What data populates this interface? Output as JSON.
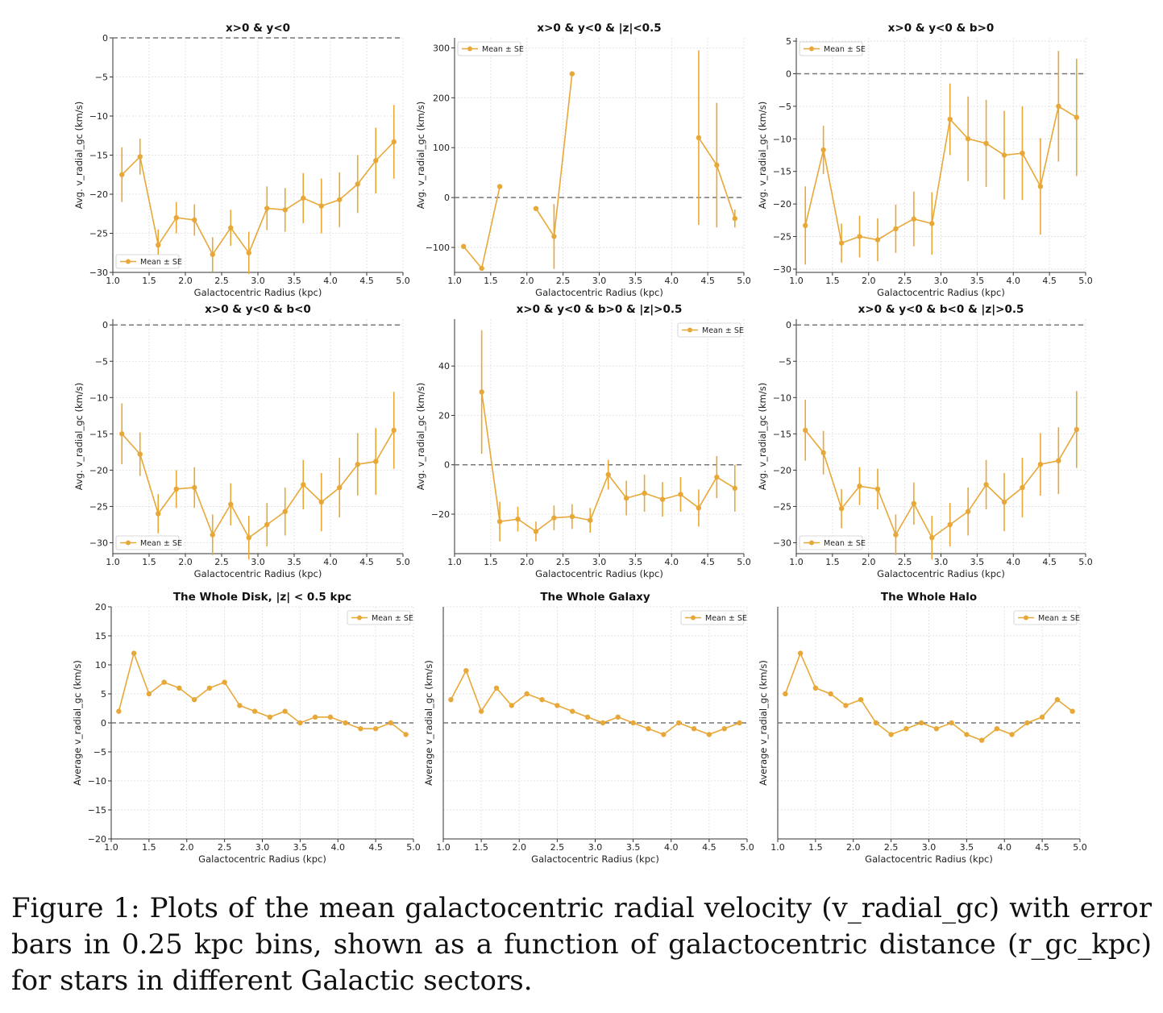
{
  "caption": "Figure 1: Plots of the mean galactocentric radial velocity (v_radial_gc) with error bars in 0.25 kpc bins, shown as a function of galactocentric distance (r_gc_kpc) for stars in different Galactic sectors.",
  "colors": {
    "series": "#e8a838",
    "zero_line": "#777777",
    "grid": "#dddddd",
    "axis": "#333333"
  },
  "chart_data": [
    {
      "type": "line",
      "title": "x>0 & y<0",
      "xlabel": "Galactocentric Radius (kpc)",
      "ylabel": "Avg. v_radial_gc (km/s)",
      "xlim": [
        1.0,
        5.0
      ],
      "ylim": [
        -30,
        0
      ],
      "xticks": [
        "1.0",
        "1.5",
        "2.0",
        "2.5",
        "3.0",
        "3.5",
        "4.0",
        "4.5",
        "5.0"
      ],
      "yticks": [
        0,
        -5,
        -10,
        -15,
        -20,
        -25,
        -30
      ],
      "grid": true,
      "legend": "bottom-left",
      "reference_line": 0,
      "series": [
        {
          "name": "Mean ± SE",
          "errorbars": true,
          "x": [
            1.125,
            1.375,
            1.625,
            1.875,
            2.125,
            2.375,
            2.625,
            2.875,
            3.125,
            3.375,
            3.625,
            3.875,
            4.125,
            4.375,
            4.625,
            4.875
          ],
          "y": [
            -17.5,
            -15.2,
            -26.5,
            -23.0,
            -23.3,
            -27.7,
            -24.3,
            -27.5,
            -21.8,
            -22.0,
            -20.5,
            -21.5,
            -20.7,
            -18.7,
            -15.7,
            -13.3
          ],
          "err": [
            3.5,
            2.3,
            2.0,
            2.0,
            2.0,
            2.2,
            2.3,
            2.7,
            2.8,
            2.8,
            3.2,
            3.5,
            3.5,
            3.7,
            4.2,
            4.7
          ]
        }
      ]
    },
    {
      "type": "line",
      "title": "x>0 & y<0 & |z|<0.5",
      "xlabel": "Galactocentric Radius (kpc)",
      "ylabel": "Avg. v_radial_gc (km/s)",
      "xlim": [
        1.0,
        5.0
      ],
      "ylim": [
        -150,
        320
      ],
      "xticks": [
        "1.0",
        "1.5",
        "2.0",
        "2.5",
        "3.0",
        "3.5",
        "4.0",
        "4.5",
        "5.0"
      ],
      "yticks": [
        300,
        200,
        100,
        0,
        -100
      ],
      "grid": true,
      "legend": "top-left",
      "reference_line": 0,
      "series": [
        {
          "name": "Mean ± SE",
          "errorbars": true,
          "x": [
            1.125,
            1.375,
            1.625,
            null,
            2.125,
            2.375,
            2.625,
            null,
            4.375,
            4.625,
            4.875
          ],
          "y": [
            -98,
            -142,
            22,
            null,
            -22,
            -78,
            248,
            null,
            120,
            65,
            -42
          ],
          "err": [
            0,
            0,
            0,
            null,
            0,
            65,
            0,
            null,
            175,
            125,
            18
          ]
        }
      ]
    },
    {
      "type": "line",
      "title": "x>0 & y<0 & b>0",
      "xlabel": "Galactocentric Radius (kpc)",
      "ylabel": "Avg. v_radial_gc (km/s)",
      "xlim": [
        1.0,
        5.0
      ],
      "ylim": [
        -30.5,
        5.5
      ],
      "xticks": [
        "1.0",
        "1.5",
        "2.0",
        "2.5",
        "3.0",
        "3.5",
        "4.0",
        "4.5",
        "5.0"
      ],
      "yticks": [
        5,
        0,
        -5,
        -10,
        -15,
        -20,
        -25,
        -30
      ],
      "grid": true,
      "legend": "top-left",
      "reference_line": 0,
      "series": [
        {
          "name": "Mean ± SE",
          "errorbars": true,
          "x": [
            1.125,
            1.375,
            1.625,
            1.875,
            2.125,
            2.375,
            2.625,
            2.875,
            3.125,
            3.375,
            3.625,
            3.875,
            4.125,
            4.375,
            4.625,
            4.875
          ],
          "y": [
            -23.3,
            -11.7,
            -26.0,
            -25.0,
            -25.5,
            -23.8,
            -22.3,
            -23.0,
            -7.0,
            -10.0,
            -10.7,
            -12.5,
            -12.2,
            -17.3,
            -5.0,
            -6.7
          ],
          "err": [
            6.0,
            3.7,
            3.0,
            3.2,
            3.3,
            3.7,
            4.2,
            4.8,
            5.5,
            6.5,
            6.7,
            6.8,
            7.2,
            7.4,
            8.5,
            9.0
          ]
        }
      ]
    },
    {
      "type": "line",
      "title": "x>0 & y<0 & b<0",
      "xlabel": "Galactocentric Radius (kpc)",
      "ylabel": "Avg. v_radial_gc (km/s)",
      "xlim": [
        1.0,
        5.0
      ],
      "ylim": [
        -31.5,
        0.8
      ],
      "xticks": [
        "1.0",
        "1.5",
        "2.0",
        "2.5",
        "3.0",
        "3.5",
        "4.0",
        "4.5",
        "5.0"
      ],
      "yticks": [
        0,
        -5,
        -10,
        -15,
        -20,
        -25,
        -30
      ],
      "grid": true,
      "legend": "bottom-left",
      "reference_line": 0,
      "series": [
        {
          "name": "Mean ± SE",
          "errorbars": true,
          "x": [
            1.125,
            1.375,
            1.625,
            1.875,
            2.125,
            2.375,
            2.625,
            2.875,
            3.125,
            3.375,
            3.625,
            3.875,
            4.125,
            4.375,
            4.625,
            4.875
          ],
          "y": [
            -15.0,
            -17.8,
            -26.0,
            -22.6,
            -22.4,
            -28.9,
            -24.7,
            -29.3,
            -27.5,
            -25.7,
            -22.0,
            -24.4,
            -22.4,
            -19.2,
            -18.8,
            -14.5
          ],
          "err": [
            4.2,
            3.0,
            2.7,
            2.6,
            2.8,
            2.8,
            2.9,
            3.0,
            3.0,
            3.3,
            3.4,
            4.0,
            4.1,
            4.3,
            4.6,
            5.3
          ]
        }
      ]
    },
    {
      "type": "line",
      "title": "x>0 & y<0 & b>0 & |z|>0.5",
      "xlabel": "Galactocentric Radius (kpc)",
      "ylabel": "Avg. v_radial_gc (km/s)",
      "xlim": [
        1.0,
        5.0
      ],
      "ylim": [
        -36,
        59
      ],
      "xticks": [
        "1.0",
        "1.5",
        "2.0",
        "2.5",
        "3.0",
        "3.5",
        "4.0",
        "4.5",
        "5.0"
      ],
      "yticks": [
        40,
        20,
        0,
        -20
      ],
      "grid": true,
      "legend": "top-right",
      "reference_line": 0,
      "series": [
        {
          "name": "Mean ± SE",
          "errorbars": true,
          "x": [
            1.375,
            1.625,
            1.875,
            2.125,
            2.375,
            2.625,
            2.875,
            3.125,
            3.375,
            3.625,
            3.875,
            4.125,
            4.375,
            4.625,
            4.875
          ],
          "y": [
            29.5,
            -23.0,
            -22.0,
            -27.0,
            -21.5,
            -21.0,
            -22.5,
            -4.0,
            -13.5,
            -11.5,
            -14.0,
            -12.0,
            -17.5,
            -5.0,
            -9.5
          ],
          "err": [
            25.0,
            8.0,
            5.0,
            4.0,
            5.0,
            5.0,
            5.0,
            6.0,
            7.0,
            7.5,
            7.0,
            7.0,
            7.5,
            8.5,
            9.5
          ]
        }
      ]
    },
    {
      "type": "line",
      "title": "x>0 & y<0 & b<0 & |z|>0.5",
      "xlabel": "Galactocentric Radius (kpc)",
      "ylabel": "Avg. v_radial_gc (km/s)",
      "xlim": [
        1.0,
        5.0
      ],
      "ylim": [
        -31.5,
        0.8
      ],
      "xticks": [
        "1.0",
        "1.5",
        "2.0",
        "2.5",
        "3.0",
        "3.5",
        "4.0",
        "4.5",
        "5.0"
      ],
      "yticks": [
        0,
        -5,
        -10,
        -15,
        -20,
        -25,
        -30
      ],
      "grid": true,
      "legend": "bottom-left",
      "reference_line": 0,
      "series": [
        {
          "name": "Mean ± SE",
          "errorbars": true,
          "x": [
            1.125,
            1.375,
            1.625,
            1.875,
            2.125,
            2.375,
            2.625,
            2.875,
            3.125,
            3.375,
            3.625,
            3.875,
            4.125,
            4.375,
            4.625,
            4.875
          ],
          "y": [
            -14.5,
            -17.6,
            -25.3,
            -22.2,
            -22.6,
            -28.9,
            -24.6,
            -29.3,
            -27.5,
            -25.7,
            -22.0,
            -24.4,
            -22.4,
            -19.2,
            -18.7,
            -14.4
          ],
          "err": [
            4.2,
            3.0,
            2.7,
            2.6,
            2.8,
            2.8,
            2.9,
            3.0,
            3.0,
            3.3,
            3.4,
            4.0,
            4.1,
            4.3,
            4.6,
            5.3
          ]
        }
      ]
    },
    {
      "type": "line",
      "title": "The Whole Disk, |z| < 0.5 kpc",
      "xlabel": "Galactocentric Radius (kpc)",
      "ylabel": "Average v_radial_gc (km/s)",
      "xlim": [
        1.0,
        5.0
      ],
      "ylim": [
        -20,
        20
      ],
      "xticks": [
        "1.0",
        "1.5",
        "2.0",
        "2.5",
        "3.0",
        "3.5",
        "4.0",
        "4.5",
        "5.0"
      ],
      "yticks": [
        20,
        15,
        10,
        5,
        0,
        -5,
        -10,
        -15,
        -20
      ],
      "grid": true,
      "legend": "top-right",
      "reference_line": 0,
      "series": [
        {
          "name": "Mean ± SE",
          "errorbars": false,
          "x": [
            1.1,
            1.3,
            1.5,
            1.7,
            1.9,
            2.1,
            2.3,
            2.5,
            2.7,
            2.9,
            3.1,
            3.3,
            3.5,
            3.7,
            3.9,
            4.1,
            4.3,
            4.5,
            4.7,
            4.9
          ],
          "y": [
            2,
            12,
            5,
            7,
            6,
            4,
            6,
            7,
            3,
            2,
            1,
            2,
            0,
            1,
            1,
            0,
            -1,
            -1,
            0,
            -2
          ]
        }
      ]
    },
    {
      "type": "line",
      "title": "The Whole Galaxy",
      "xlabel": "Galactocentric Radius (kpc)",
      "ylabel": "Average v_radial_gc (km/s)",
      "xlim": [
        1.0,
        5.0
      ],
      "ylim": [
        -20,
        20
      ],
      "xticks": [
        "1.0",
        "1.5",
        "2.0",
        "2.5",
        "3.0",
        "3.5",
        "4.0",
        "4.5",
        "5.0"
      ],
      "yticks": [],
      "grid": true,
      "legend": "top-right",
      "reference_line": 0,
      "series": [
        {
          "name": "Mean ± SE",
          "errorbars": false,
          "x": [
            1.1,
            1.3,
            1.5,
            1.7,
            1.9,
            2.1,
            2.3,
            2.5,
            2.7,
            2.9,
            3.1,
            3.3,
            3.5,
            3.7,
            3.9,
            4.1,
            4.3,
            4.5,
            4.7,
            4.9
          ],
          "y": [
            4,
            9,
            2,
            6,
            3,
            5,
            4,
            3,
            2,
            1,
            0,
            1,
            0,
            -1,
            -2,
            0,
            -1,
            -2,
            -1,
            0
          ]
        }
      ]
    },
    {
      "type": "line",
      "title": "The Whole Halo",
      "xlabel": "Galactocentric Radius (kpc)",
      "ylabel": "Average v_radial_gc (km/s)",
      "xlim": [
        1.0,
        5.0
      ],
      "ylim": [
        -20,
        20
      ],
      "xticks": [
        "1.0",
        "1.5",
        "2.0",
        "2.5",
        "3.0",
        "3.5",
        "4.0",
        "4.5",
        "5.0"
      ],
      "yticks": [],
      "grid": true,
      "legend": "top-right",
      "reference_line": 0,
      "series": [
        {
          "name": "Mean ± SE",
          "errorbars": false,
          "x": [
            1.1,
            1.3,
            1.5,
            1.7,
            1.9,
            2.1,
            2.3,
            2.5,
            2.7,
            2.9,
            3.1,
            3.3,
            3.5,
            3.7,
            3.9,
            4.1,
            4.3,
            4.5,
            4.7,
            4.9
          ],
          "y": [
            5,
            12,
            6,
            5,
            3,
            4,
            0,
            -2,
            -1,
            0,
            -1,
            0,
            -2,
            -3,
            -1,
            -2,
            0,
            1,
            4,
            2
          ]
        }
      ]
    }
  ]
}
